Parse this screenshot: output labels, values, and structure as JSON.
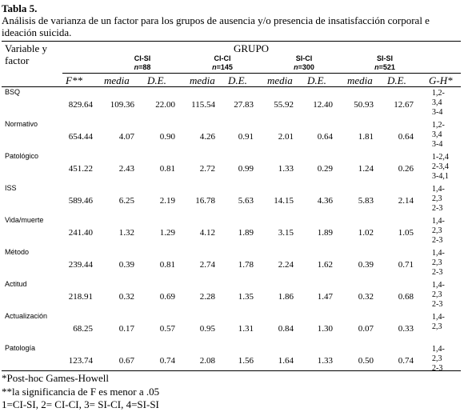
{
  "title": "Tabla 5.",
  "caption": "Análisis de varianza de un factor para los grupos de ausencia y/o presencia de insatisfacción corporal e ideación suicida.",
  "header": {
    "variable_line1": "Variable  y",
    "variable_line2": "factor",
    "grupo": "GRUPO",
    "groups": [
      {
        "name": "CI-SI",
        "n_label": "n",
        "n_value": "=88"
      },
      {
        "name": "CI-CI",
        "n_label": "n",
        "n_value": "=145"
      },
      {
        "name": "SI-CI",
        "n_label": "n",
        "n_value": "=300"
      },
      {
        "name": "SI-SI",
        "n_label": "n",
        "n_value": "=521"
      }
    ],
    "sub": [
      "F**",
      "media",
      "D.E.",
      "media",
      "D.E.",
      "media",
      "D.E.",
      "media",
      "D.E.",
      "G-H*"
    ]
  },
  "rows": [
    {
      "label": "BSQ",
      "values": [
        "829.64",
        "109.36",
        "22.00",
        "115.54",
        "27.83",
        "55.92",
        "12.40",
        "50.93",
        "12.67"
      ],
      "gh": [
        "1,2-",
        "3,4",
        "3-4"
      ]
    },
    {
      "label": "Normativo",
      "values": [
        "654.44",
        "4.07",
        "0.90",
        "4.26",
        "0.91",
        "2.01",
        "0.64",
        "1.81",
        "0.64"
      ],
      "gh": [
        "1,2-",
        "3,4",
        "3-4"
      ]
    },
    {
      "label": "Patológico",
      "values": [
        "451.22",
        "2.43",
        "0.81",
        "2.72",
        "0.99",
        "1.33",
        "0.29",
        "1.24",
        "0.26"
      ],
      "gh": [
        "1-2,4",
        "2-3,4",
        "3-4,1"
      ]
    },
    {
      "label": "ISS",
      "values": [
        "589.46",
        "6.25",
        "2.19",
        "16.78",
        "5.63",
        "14.15",
        "4.36",
        "5.83",
        "2.14"
      ],
      "gh": [
        "1,4-",
        "2,3",
        "2-3"
      ]
    },
    {
      "label": "Vida/muerte",
      "values": [
        "241.40",
        "1.32",
        "1.29",
        "4.12",
        "1.89",
        "3.15",
        "1.89",
        "1.02",
        "1.05"
      ],
      "gh": [
        "1,4-",
        "2,3",
        "2-3"
      ]
    },
    {
      "label": "Método",
      "values": [
        "239.44",
        "0.39",
        "0.81",
        "2.74",
        "1.78",
        "2.24",
        "1.62",
        "0.39",
        "0.71"
      ],
      "gh": [
        "1,4-",
        "2,3",
        "2-3"
      ]
    },
    {
      "label": "Actitud",
      "values": [
        "218.91",
        "0.32",
        "0.69",
        "2.28",
        "1.35",
        "1.86",
        "1.47",
        "0.32",
        "0.68"
      ],
      "gh": [
        "1,4-",
        "2,3",
        "2-3"
      ]
    },
    {
      "label": "Actualización",
      "values": [
        "68.25",
        "0.17",
        "0.57",
        "0.95",
        "1.31",
        "0.84",
        "1.30",
        "0.07",
        "0.33"
      ],
      "gh": [
        "1,4-",
        "2,3"
      ]
    },
    {
      "label": "Patología",
      "values": [
        "123.74",
        "0.67",
        "0.74",
        "2.08",
        "1.56",
        "1.64",
        "1.33",
        "0.50",
        "0.74"
      ],
      "gh": [
        "1,4-",
        "2,3",
        "2-3"
      ]
    }
  ],
  "footnotes": [
    "*Post-hoc Games-Howell",
    "**la significancia de F es menor a .05",
    "1=CI-SI, 2= CI-CI, 3= SI-CI, 4=SI-SI"
  ]
}
